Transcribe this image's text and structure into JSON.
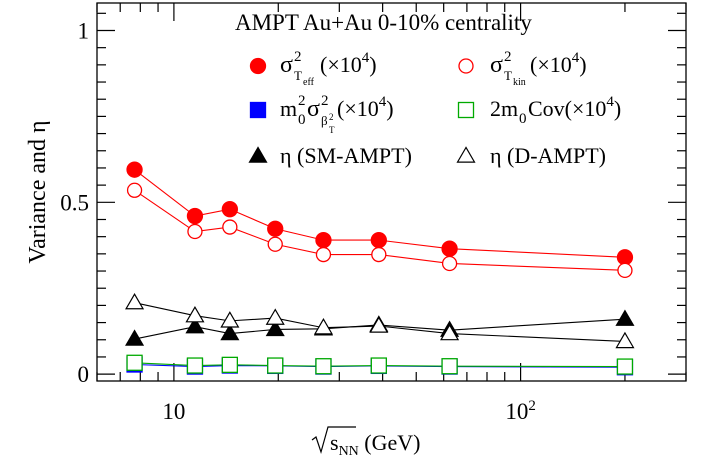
{
  "chart_data": {
    "type": "scatter",
    "title": "AMPT Au+Au 0-10% centrality",
    "xlabel": "√s_NN (GeV)",
    "ylabel": "Variance and η",
    "xscale": "log",
    "xlim": [
      6,
      300
    ],
    "ylim": [
      -0.02,
      1.08
    ],
    "x_ticks": [
      {
        "value": 10,
        "label": "10"
      },
      {
        "value": 100,
        "label": "10²"
      }
    ],
    "y_ticks": [
      {
        "value": 0,
        "label": "0"
      },
      {
        "value": 0.5,
        "label": "0.5"
      },
      {
        "value": 1,
        "label": "1"
      }
    ],
    "grid": false,
    "legend_position": "top-right",
    "x": [
      7.7,
      11.5,
      14.5,
      19.6,
      27,
      39,
      62.4,
      200
    ],
    "series": [
      {
        "name": "σ²_T_eff (×10⁴)",
        "marker": "circle",
        "filled": true,
        "color": "#ff0000",
        "values": [
          0.595,
          0.46,
          0.48,
          0.423,
          0.39,
          0.39,
          0.365,
          0.34
        ]
      },
      {
        "name": "σ²_T_kin (×10⁴)",
        "marker": "circle",
        "filled": false,
        "color": "#ff0000",
        "values": [
          0.535,
          0.415,
          0.428,
          0.378,
          0.348,
          0.348,
          0.322,
          0.302
        ]
      },
      {
        "name": "m²₀σ²_β²_T (×10⁴)",
        "marker": "square",
        "filled": true,
        "color": "#0000ff",
        "values": [
          0.028,
          0.022,
          0.025,
          0.024,
          0.022,
          0.024,
          0.022,
          0.02
        ]
      },
      {
        "name": "2m₀Cov(×10⁴)",
        "marker": "square",
        "filled": false,
        "color": "#00aa00",
        "values": [
          0.033,
          0.025,
          0.027,
          0.025,
          0.023,
          0.025,
          0.023,
          0.022
        ]
      },
      {
        "name": "η (SM-AMPT)",
        "marker": "triangle",
        "filled": true,
        "color": "#000000",
        "values": [
          0.102,
          0.138,
          0.118,
          0.13,
          0.132,
          0.143,
          0.128,
          0.16
        ]
      },
      {
        "name": "η (D-AMPT)",
        "marker": "triangle",
        "filled": false,
        "color": "#000000",
        "values": [
          0.208,
          0.17,
          0.155,
          0.163,
          0.135,
          0.14,
          0.118,
          0.095
        ]
      }
    ]
  }
}
